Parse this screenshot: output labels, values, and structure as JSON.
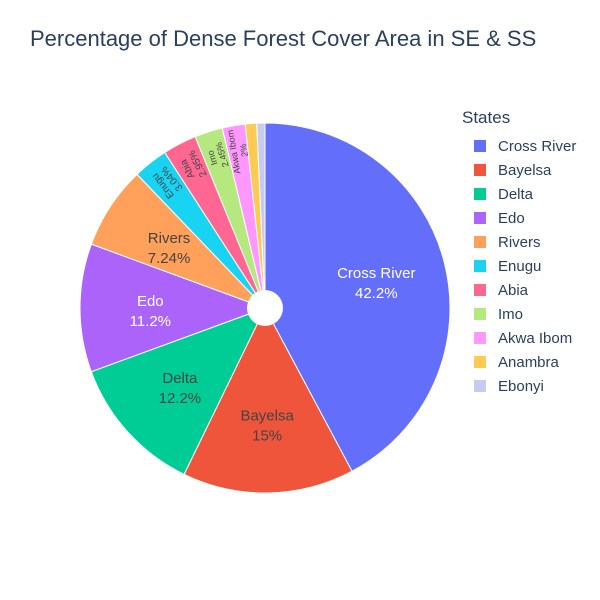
{
  "chart_data": {
    "type": "pie",
    "title": "Percentage of Dense Forest Cover Area in SE & SS",
    "legend_title": "States",
    "legend_position": "right",
    "hole": true,
    "categories": [
      "Cross River",
      "Bayelsa",
      "Delta",
      "Edo",
      "Rivers",
      "Enugu",
      "Abia",
      "Imo",
      "Akwa Ibom",
      "Anambra",
      "Ebonyi"
    ],
    "values": [
      42.2,
      15,
      12.2,
      11.2,
      7.24,
      3.04,
      2.95,
      2.45,
      2,
      1,
      0.71
    ],
    "labels": [
      "42.2%",
      "15%",
      "12.2%",
      "11.2%",
      "7.24%",
      "3.04%",
      "2.95%",
      "2.45%",
      "2%",
      "",
      ""
    ],
    "colors": [
      "#636efa",
      "#ef553b",
      "#00cc96",
      "#ab63fa",
      "#ffa15a",
      "#19d3f3",
      "#ff6692",
      "#b6e880",
      "#ff97ff",
      "#fecb52",
      "#c6cbef"
    ]
  }
}
